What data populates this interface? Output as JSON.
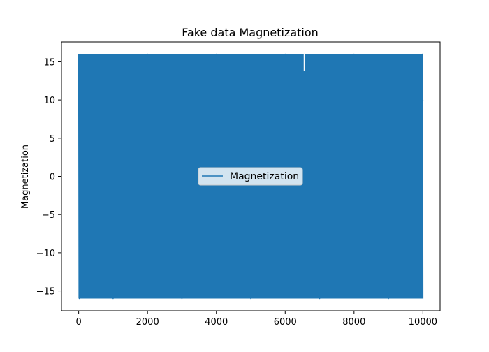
{
  "chart_data": {
    "type": "line",
    "title": "Fake data Magnetization",
    "xlabel": "",
    "ylabel": "Magnetization",
    "xlim": [
      -500,
      10500
    ],
    "ylim": [
      -17.6,
      17.6
    ],
    "xticks": [
      0,
      2000,
      4000,
      6000,
      8000,
      10000
    ],
    "xtick_labels": [
      "0",
      "2000",
      "4000",
      "6000",
      "8000",
      "10000"
    ],
    "yticks": [
      -15,
      -10,
      -5,
      0,
      5,
      10,
      15
    ],
    "ytick_labels": [
      "−15",
      "−10",
      "−5",
      "0",
      "5",
      "10",
      "15"
    ],
    "grid": false,
    "legend": {
      "position": "center",
      "entries": [
        "Magnetization"
      ]
    },
    "series": [
      {
        "name": "Magnetization",
        "color": "#1f77b4",
        "x_range": [
          0,
          10000
        ],
        "n_points": 10000,
        "y_min": -16,
        "y_max": 16,
        "description_values": [
          [
            0,
            14
          ],
          [
            20,
            -16
          ],
          [
            40,
            16
          ],
          [
            1000,
            -16
          ],
          [
            2000,
            16
          ],
          [
            3000,
            -16
          ],
          [
            4000,
            16
          ],
          [
            5000,
            -16
          ],
          [
            6000,
            16
          ],
          [
            6550,
            13.8
          ],
          [
            7000,
            -16
          ],
          [
            8000,
            16
          ],
          [
            9000,
            -16
          ],
          [
            9980,
            16
          ],
          [
            10000,
            10
          ]
        ]
      }
    ]
  }
}
